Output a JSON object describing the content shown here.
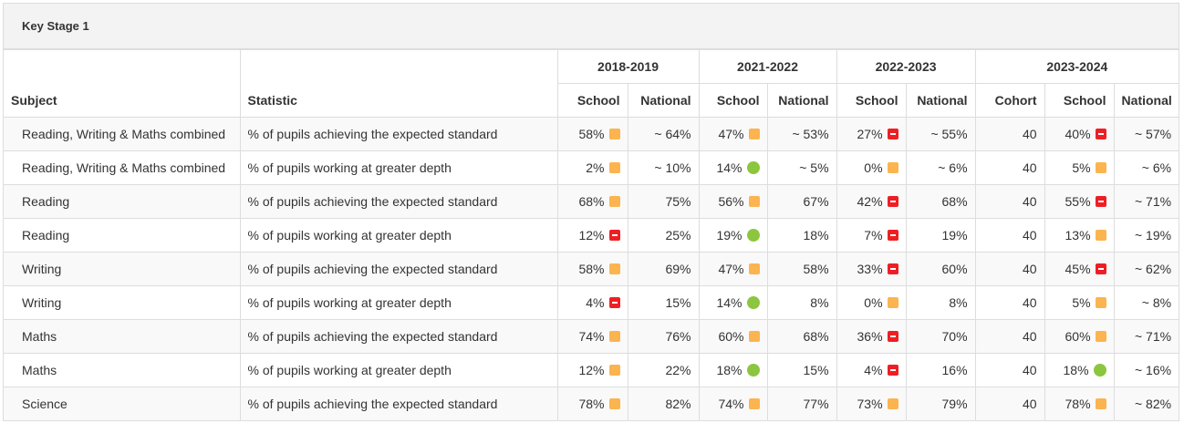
{
  "panel": {
    "title": "Key Stage 1"
  },
  "header": {
    "subject": "Subject",
    "statistic": "Statistic",
    "years": [
      {
        "label": "2018-2019",
        "columns": [
          "School",
          "National"
        ]
      },
      {
        "label": "2021-2022",
        "columns": [
          "School",
          "National"
        ]
      },
      {
        "label": "2022-2023",
        "columns": [
          "School",
          "National"
        ]
      },
      {
        "label": "2023-2024",
        "columns": [
          "Cohort",
          "School",
          "National"
        ]
      }
    ]
  },
  "indicator_colors": {
    "amber": "#fbb450",
    "red": "#ee1f24",
    "green": "#8cc63f"
  },
  "rows": [
    {
      "subject": "Reading, Writing & Maths combined",
      "statistic": "% of pupils achieving the expected standard",
      "y2018_school": "58%",
      "y2018_school_ind": "amber",
      "y2018_national": "~ 64%",
      "y2021_school": "47%",
      "y2021_school_ind": "amber",
      "y2021_national": "~ 53%",
      "y2022_school": "27%",
      "y2022_school_ind": "red",
      "y2022_national": "~ 55%",
      "y2023_cohort": "40",
      "y2023_school": "40%",
      "y2023_school_ind": "red",
      "y2023_national": "~ 57%"
    },
    {
      "subject": "Reading, Writing & Maths combined",
      "statistic": "% of pupils working at greater depth",
      "y2018_school": "2%",
      "y2018_school_ind": "amber",
      "y2018_national": "~ 10%",
      "y2021_school": "14%",
      "y2021_school_ind": "green",
      "y2021_national": "~ 5%",
      "y2022_school": "0%",
      "y2022_school_ind": "amber",
      "y2022_national": "~ 6%",
      "y2023_cohort": "40",
      "y2023_school": "5%",
      "y2023_school_ind": "amber",
      "y2023_national": "~ 6%"
    },
    {
      "subject": "Reading",
      "statistic": "% of pupils achieving the expected standard",
      "y2018_school": "68%",
      "y2018_school_ind": "amber",
      "y2018_national": "75%",
      "y2021_school": "56%",
      "y2021_school_ind": "amber",
      "y2021_national": "67%",
      "y2022_school": "42%",
      "y2022_school_ind": "red",
      "y2022_national": "68%",
      "y2023_cohort": "40",
      "y2023_school": "55%",
      "y2023_school_ind": "red",
      "y2023_national": "~ 71%"
    },
    {
      "subject": "Reading",
      "statistic": "% of pupils working at greater depth",
      "y2018_school": "12%",
      "y2018_school_ind": "red",
      "y2018_national": "25%",
      "y2021_school": "19%",
      "y2021_school_ind": "green",
      "y2021_national": "18%",
      "y2022_school": "7%",
      "y2022_school_ind": "red",
      "y2022_national": "19%",
      "y2023_cohort": "40",
      "y2023_school": "13%",
      "y2023_school_ind": "amber",
      "y2023_national": "~ 19%"
    },
    {
      "subject": "Writing",
      "statistic": "% of pupils achieving the expected standard",
      "y2018_school": "58%",
      "y2018_school_ind": "amber",
      "y2018_national": "69%",
      "y2021_school": "47%",
      "y2021_school_ind": "amber",
      "y2021_national": "58%",
      "y2022_school": "33%",
      "y2022_school_ind": "red",
      "y2022_national": "60%",
      "y2023_cohort": "40",
      "y2023_school": "45%",
      "y2023_school_ind": "red",
      "y2023_national": "~ 62%"
    },
    {
      "subject": "Writing",
      "statistic": "% of pupils working at greater depth",
      "y2018_school": "4%",
      "y2018_school_ind": "red",
      "y2018_national": "15%",
      "y2021_school": "14%",
      "y2021_school_ind": "green",
      "y2021_national": "8%",
      "y2022_school": "0%",
      "y2022_school_ind": "amber",
      "y2022_national": "8%",
      "y2023_cohort": "40",
      "y2023_school": "5%",
      "y2023_school_ind": "amber",
      "y2023_national": "~ 8%"
    },
    {
      "subject": "Maths",
      "statistic": "% of pupils achieving the expected standard",
      "y2018_school": "74%",
      "y2018_school_ind": "amber",
      "y2018_national": "76%",
      "y2021_school": "60%",
      "y2021_school_ind": "amber",
      "y2021_national": "68%",
      "y2022_school": "36%",
      "y2022_school_ind": "red",
      "y2022_national": "70%",
      "y2023_cohort": "40",
      "y2023_school": "60%",
      "y2023_school_ind": "amber",
      "y2023_national": "~ 71%"
    },
    {
      "subject": "Maths",
      "statistic": "% of pupils working at greater depth",
      "y2018_school": "12%",
      "y2018_school_ind": "amber",
      "y2018_national": "22%",
      "y2021_school": "18%",
      "y2021_school_ind": "green",
      "y2021_national": "15%",
      "y2022_school": "4%",
      "y2022_school_ind": "red",
      "y2022_national": "16%",
      "y2023_cohort": "40",
      "y2023_school": "18%",
      "y2023_school_ind": "green",
      "y2023_national": "~ 16%"
    },
    {
      "subject": "Science",
      "statistic": "% of pupils achieving the expected standard",
      "y2018_school": "78%",
      "y2018_school_ind": "amber",
      "y2018_national": "82%",
      "y2021_school": "74%",
      "y2021_school_ind": "amber",
      "y2021_national": "77%",
      "y2022_school": "73%",
      "y2022_school_ind": "amber",
      "y2022_national": "79%",
      "y2023_cohort": "40",
      "y2023_school": "78%",
      "y2023_school_ind": "amber",
      "y2023_national": "~ 82%"
    }
  ]
}
